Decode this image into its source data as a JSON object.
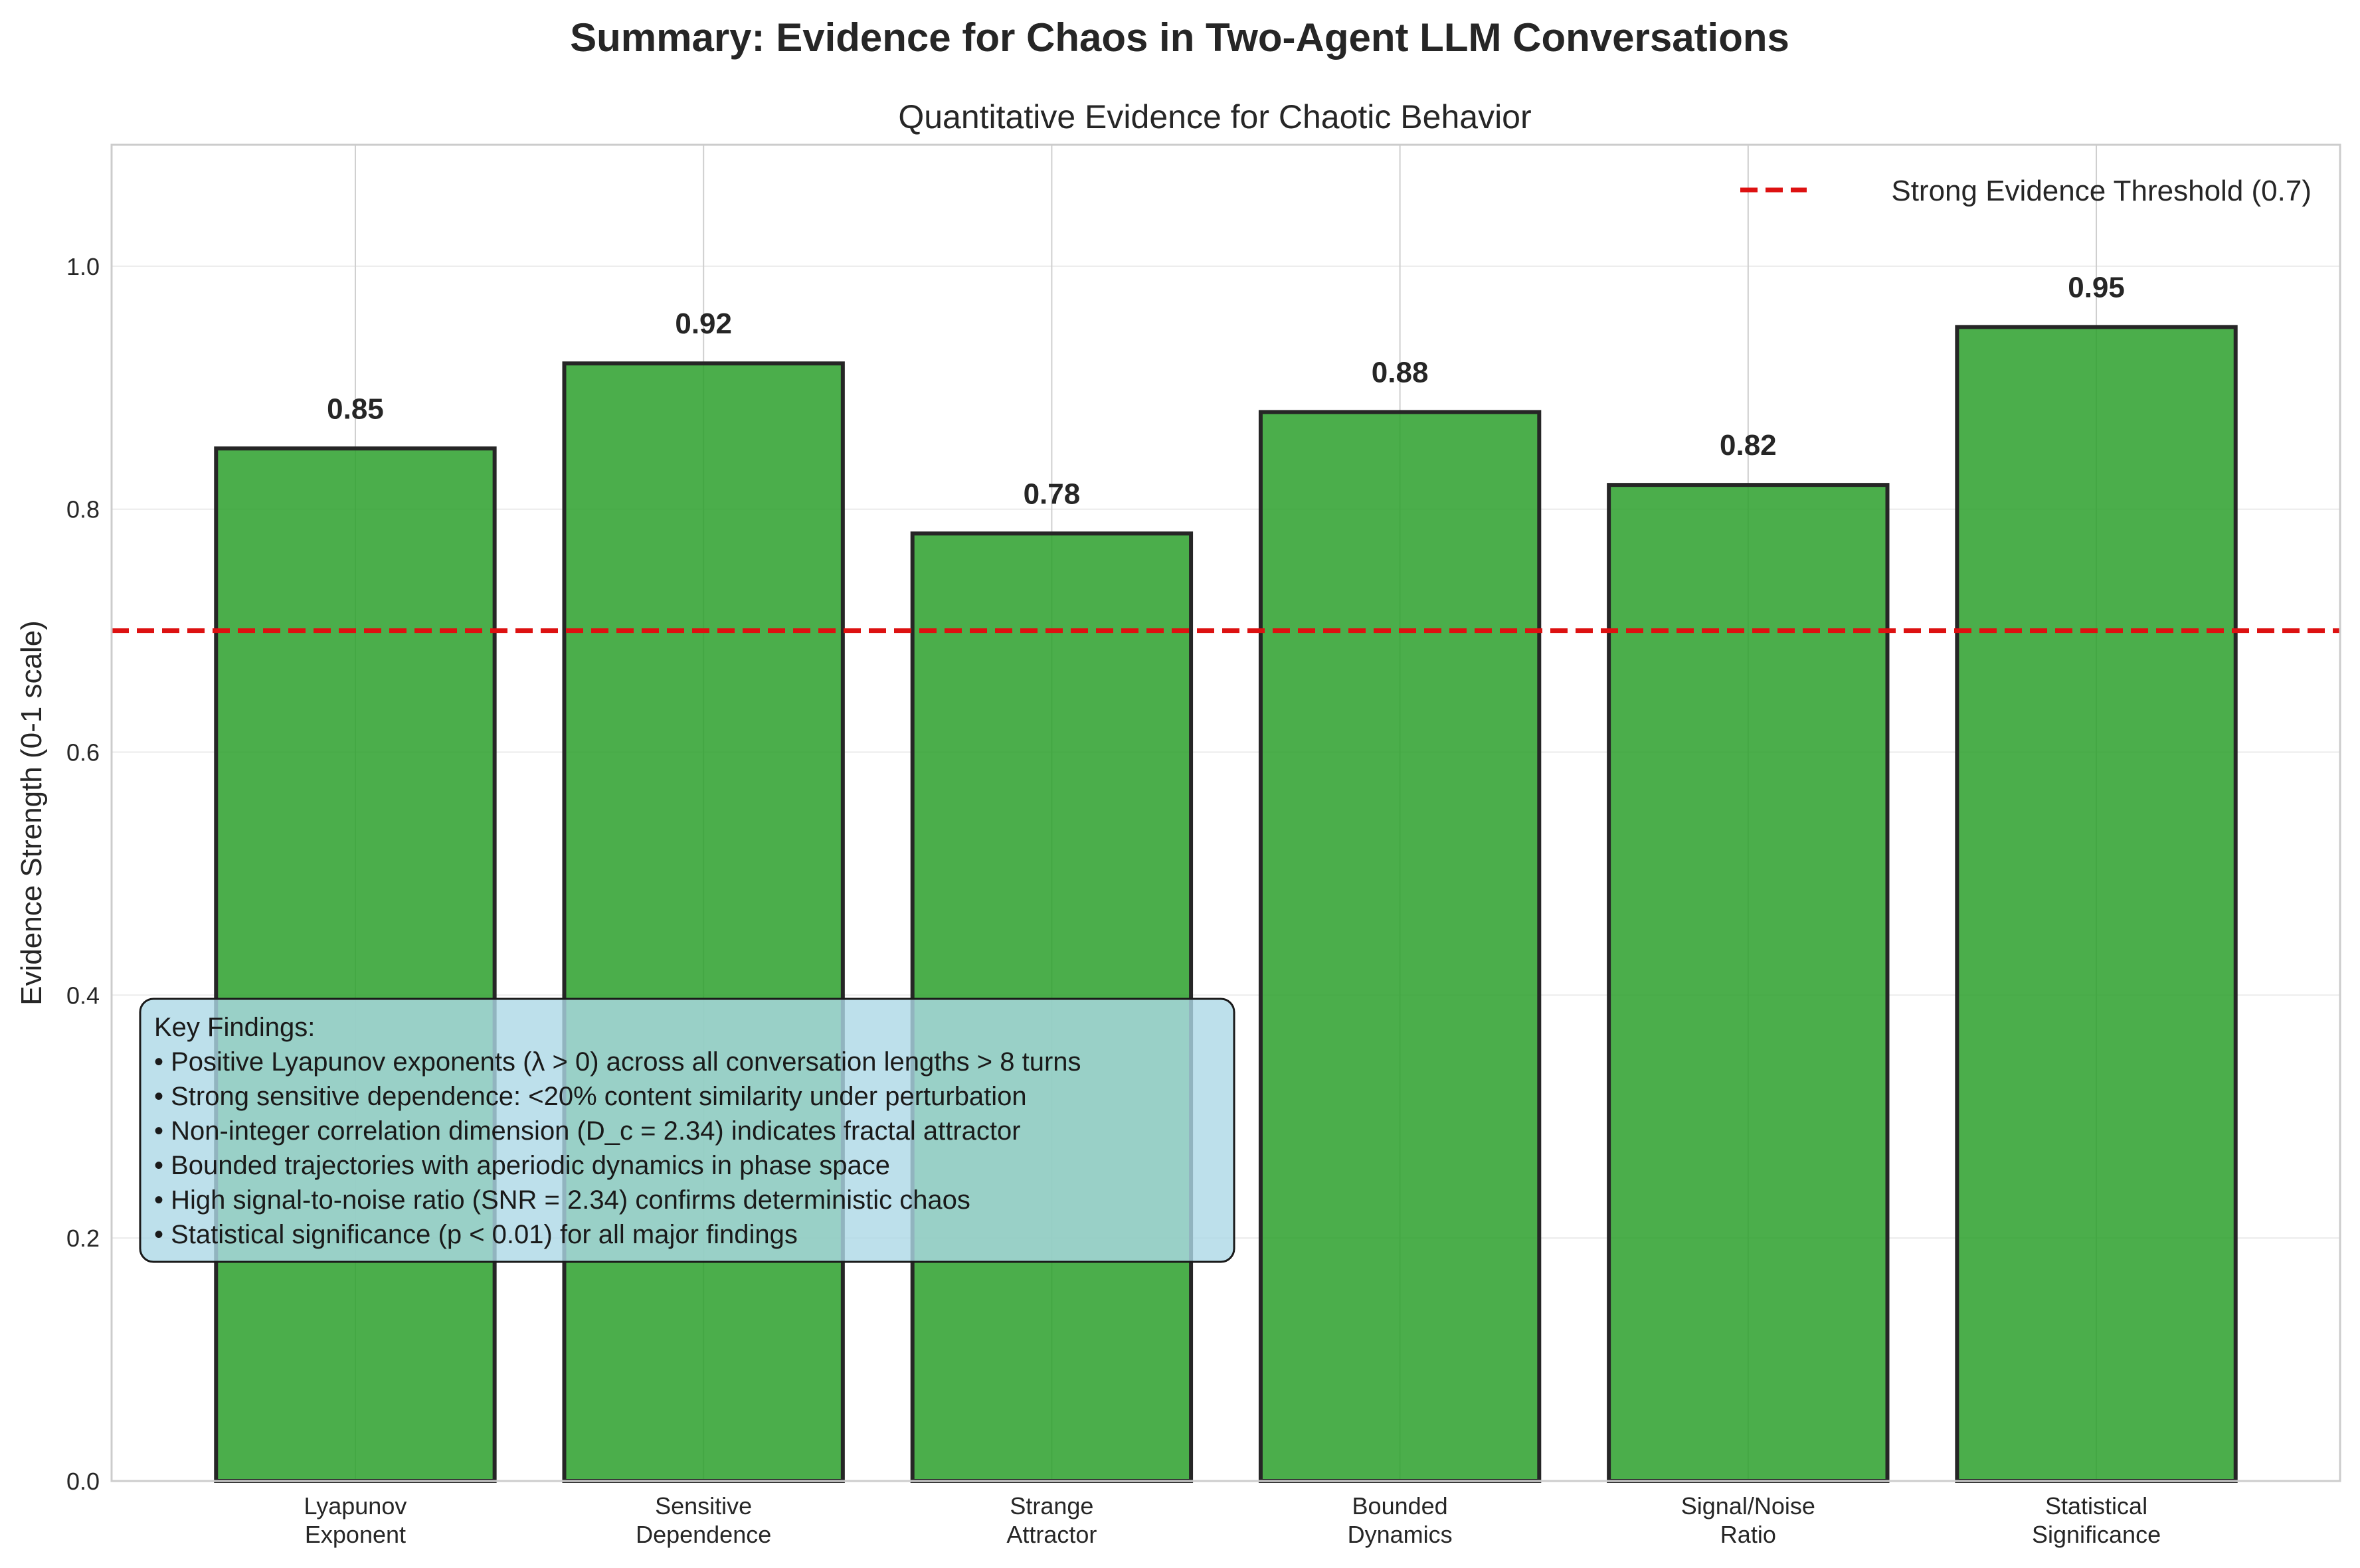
{
  "chart_data": {
    "type": "bar",
    "suptitle": "Summary: Evidence for Chaos in Two-Agent LLM Conversations",
    "title": "Quantitative Evidence for Chaotic Behavior",
    "xlabel": "",
    "ylabel": "Evidence Strength (0-1 scale)",
    "categories": [
      [
        "Lyapunov",
        "Exponent"
      ],
      [
        "Sensitive",
        "Dependence"
      ],
      [
        "Strange",
        "Attractor"
      ],
      [
        "Bounded",
        "Dynamics"
      ],
      [
        "Signal/Noise",
        "Ratio"
      ],
      [
        "Statistical",
        "Significance"
      ]
    ],
    "values": [
      0.85,
      0.92,
      0.78,
      0.88,
      0.82,
      0.95
    ],
    "value_labels": [
      "0.85",
      "0.92",
      "0.78",
      "0.88",
      "0.82",
      "0.95"
    ],
    "ylim": [
      0,
      1.1
    ],
    "yticks": [
      0.0,
      0.2,
      0.4,
      0.6,
      0.8,
      1.0
    ],
    "ytick_labels": [
      "0.0",
      "0.2",
      "0.4",
      "0.6",
      "0.8",
      "1.0"
    ],
    "threshold": {
      "value": 0.7,
      "label": "Strong Evidence Threshold (0.7)",
      "color": "#dd1111"
    },
    "bar_color": "#2ca02c",
    "bar_edge_color": "#262626",
    "grid": true,
    "legend_position": "top-right",
    "annotation": {
      "lines": [
        "Key Findings:",
        "• Positive Lyapunov exponents (λ > 0) across all conversation lengths > 8 turns",
        "• Strong sensitive dependence: <20% content similarity under perturbation",
        "• Non-integer correlation dimension (D_c = 2.34) indicates fractal attractor",
        "• Bounded trajectories with aperiodic dynamics in phase space",
        "• High signal-to-noise ratio (SNR = 2.34) confirms deterministic chaos",
        "• Statistical significance (p < 0.01) for all major findings"
      ],
      "box_color": "#add8e6"
    }
  }
}
